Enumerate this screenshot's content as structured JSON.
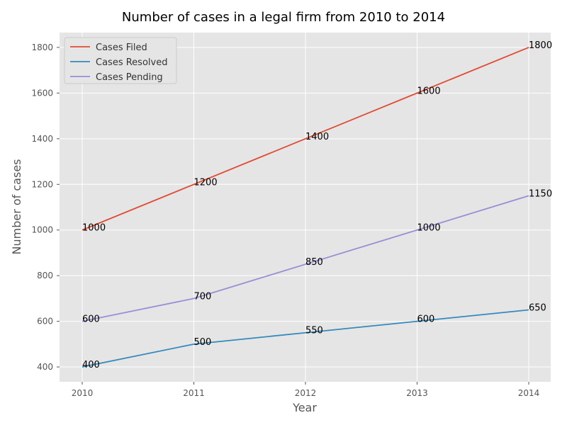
{
  "chart_data": {
    "type": "line",
    "title": "Number of cases in a legal firm from 2010 to 2014",
    "xlabel": "Year",
    "ylabel": "Number of cases",
    "categories": [
      "2010",
      "2011",
      "2012",
      "2013",
      "2014"
    ],
    "ylim": [
      335,
      1865
    ],
    "yticks": [
      400,
      600,
      800,
      1000,
      1200,
      1400,
      1600,
      1800
    ],
    "grid": true,
    "legend_position": "top-left",
    "series": [
      {
        "name": "Cases Filed",
        "values": [
          1000,
          1200,
          1400,
          1600,
          1800
        ],
        "color": "#E24A33"
      },
      {
        "name": "Cases Resolved",
        "values": [
          400,
          500,
          550,
          600,
          650
        ],
        "color": "#348ABD"
      },
      {
        "name": "Cases Pending",
        "values": [
          600,
          700,
          850,
          1000,
          1150
        ],
        "color": "#988ED5"
      }
    ],
    "background_color": "#E5E5E5",
    "grid_color": "#FFFFFF"
  }
}
